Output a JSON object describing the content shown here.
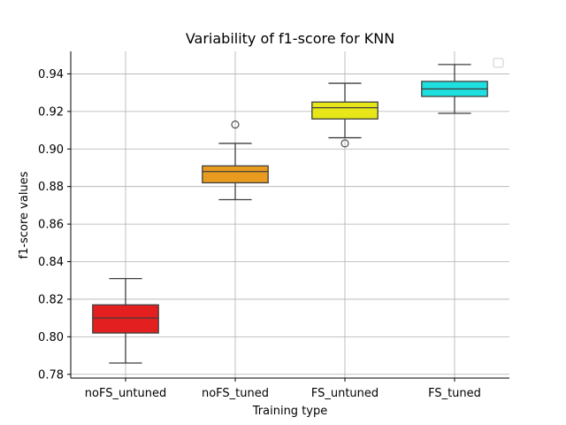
{
  "chart_data": {
    "type": "box",
    "title": "Variability of f1-score  for KNN",
    "xlabel": "Training type",
    "ylabel": "f1-score values",
    "categories": [
      "noFS_untuned",
      "noFS_tuned",
      "FS_untuned",
      "FS_tuned"
    ],
    "ylim": [
      0.778,
      0.952
    ],
    "yticks": [
      0.78,
      0.8,
      0.82,
      0.84,
      0.86,
      0.88,
      0.9,
      0.92,
      0.94
    ],
    "ytick_labels": [
      "0.78",
      "0.80",
      "0.82",
      "0.84",
      "0.86",
      "0.88",
      "0.90",
      "0.92",
      "0.94"
    ],
    "grid": true,
    "legend": {
      "placement": "top-right",
      "entries": []
    },
    "boxes": [
      {
        "category": "noFS_untuned",
        "color": "#e41f1f",
        "whisker_low": 0.786,
        "q1": 0.802,
        "median": 0.81,
        "q3": 0.817,
        "whisker_high": 0.831,
        "outliers": []
      },
      {
        "category": "noFS_tuned",
        "color": "#e89b1f",
        "whisker_low": 0.873,
        "q1": 0.882,
        "median": 0.888,
        "q3": 0.891,
        "whisker_high": 0.903,
        "outliers": [
          0.913
        ]
      },
      {
        "category": "FS_untuned",
        "color": "#e6e619",
        "whisker_low": 0.906,
        "q1": 0.916,
        "median": 0.922,
        "q3": 0.925,
        "whisker_high": 0.935,
        "outliers": [
          0.903
        ]
      },
      {
        "category": "FS_tuned",
        "color": "#1fe0e0",
        "whisker_low": 0.919,
        "q1": 0.928,
        "median": 0.932,
        "q3": 0.936,
        "whisker_high": 0.945,
        "outliers": []
      }
    ]
  }
}
